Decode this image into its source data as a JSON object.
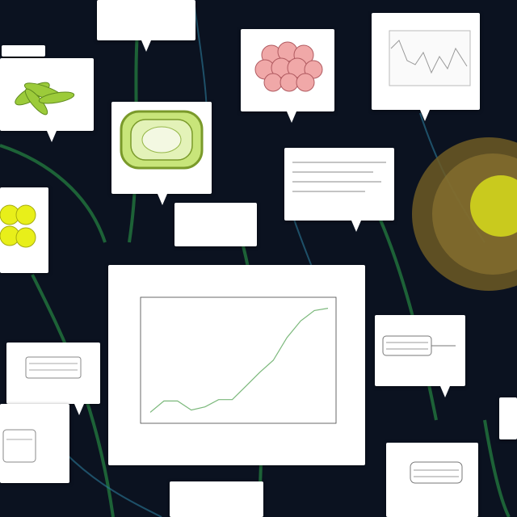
{
  "cards": {
    "top_center": "",
    "top_left_small": "",
    "leaf": "",
    "cell": "",
    "pink_cells": "",
    "top_right_chart": "",
    "mid_right_text": "",
    "mid_center_text": "",
    "left_yellow": "",
    "left_mid": "",
    "left_bottom": "",
    "right_mid": "",
    "right_bottom": "",
    "bottom_center": "",
    "right_edge": ""
  },
  "colors": {
    "background": "#0b1220",
    "chart_line": "#7bb87b",
    "plant": "#3fa64a",
    "yellow": "#e8ef1a"
  },
  "chart_data": {
    "type": "line",
    "title": "",
    "xlabel": "",
    "ylabel": "",
    "x": [
      1,
      2,
      3,
      4,
      5,
      6,
      7,
      8,
      9,
      10,
      11,
      12,
      13,
      14
    ],
    "values": [
      1.0,
      3.5,
      3.5,
      1.5,
      2.2,
      3.8,
      3.8,
      6.8,
      9.8,
      12.5,
      17.5,
      21.2,
      23.5,
      24.0
    ],
    "ylim": [
      0,
      25
    ],
    "xticklabels": [],
    "yticklabels": [],
    "grid": false
  }
}
